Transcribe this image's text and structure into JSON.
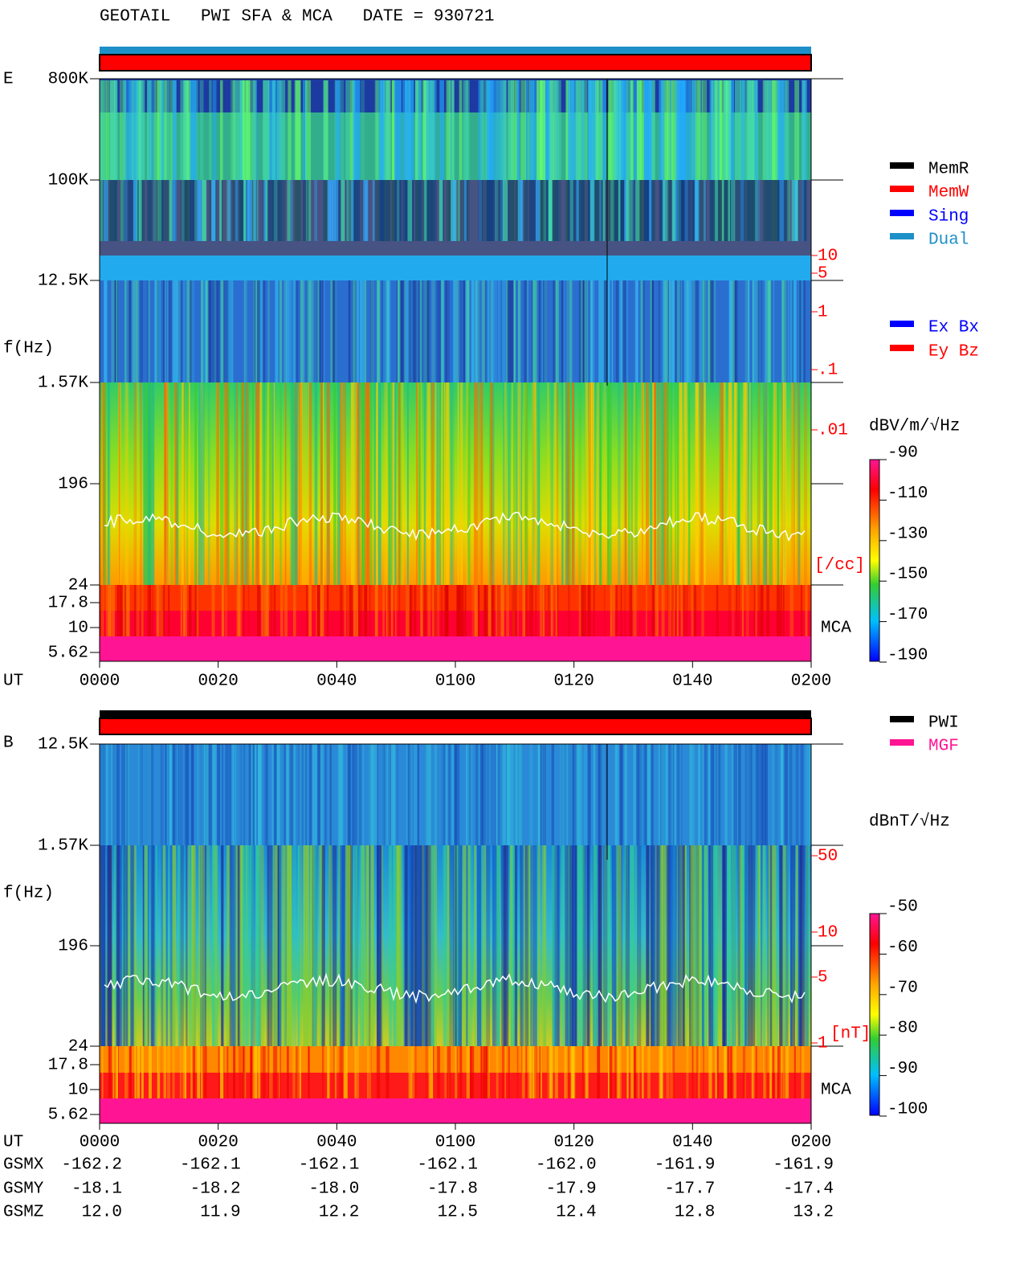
{
  "header": {
    "title": "GEOTAIL   PWI SFA & MCA   DATE = 930721"
  },
  "panels": [
    {
      "component": "E",
      "y_label": "f(Hz)",
      "freq_ticks": [
        "800K",
        "100K",
        "12.5K",
        "1.57K",
        "196",
        "24",
        "17.8",
        "10",
        "5.62"
      ],
      "time_label": "UT",
      "time_ticks": [
        "0000",
        "0020",
        "0040",
        "0100",
        "0120",
        "0140",
        "0200"
      ],
      "legend": [
        {
          "label": "MemR",
          "color": "#000000"
        },
        {
          "label": "MemW",
          "color": "#ff0000"
        },
        {
          "label": "Sing",
          "color": "#0000ff"
        },
        {
          "label": "Dual",
          "color": "#1e90c8"
        }
      ],
      "legend2": [
        {
          "label": "Ex Bx",
          "color": "#0000ff"
        },
        {
          "label": "Ey Bz",
          "color": "#ff0000"
        }
      ],
      "unit": "dBV/m/√Hz",
      "colorbar": [
        "-90",
        "-110",
        "-130",
        "-150",
        "-170",
        "-190"
      ],
      "aux_scale": [
        "10",
        "5",
        "1",
        ".1",
        ".01"
      ],
      "aux_unit": "[/cc]",
      "mca": "MCA"
    },
    {
      "component": "B",
      "y_label": "f(Hz)",
      "freq_ticks": [
        "12.5K",
        "1.57K",
        "196",
        "24",
        "17.8",
        "10",
        "5.62"
      ],
      "time_label": "UT",
      "time_ticks": [
        "0000",
        "0020",
        "0040",
        "0100",
        "0120",
        "0140",
        "0200"
      ],
      "legend": [
        {
          "label": "PWI",
          "color": "#000000"
        },
        {
          "label": "MGF",
          "color": "#ff1493"
        }
      ],
      "unit": "dBnT/√Hz",
      "colorbar": [
        "-50",
        "-60",
        "-70",
        "-80",
        "-90",
        "-100"
      ],
      "aux_scale": [
        "50",
        "10",
        "5",
        "1"
      ],
      "aux_unit": "[nT]",
      "mca": "MCA"
    }
  ],
  "orbit": {
    "rows": [
      {
        "label": "GSMX",
        "values": [
          "-162.2",
          "-162.1",
          "-162.1",
          "-162.1",
          "-162.0",
          "-161.9",
          "-161.9"
        ]
      },
      {
        "label": "GSMY",
        "values": [
          "-18.1",
          "-18.2",
          "-18.0",
          "-17.8",
          "-17.9",
          "-17.7",
          "-17.4"
        ]
      },
      {
        "label": "GSMZ",
        "values": [
          "12.0",
          "11.9",
          "12.2",
          "12.5",
          "12.4",
          "12.8",
          "13.2"
        ]
      }
    ]
  }
}
